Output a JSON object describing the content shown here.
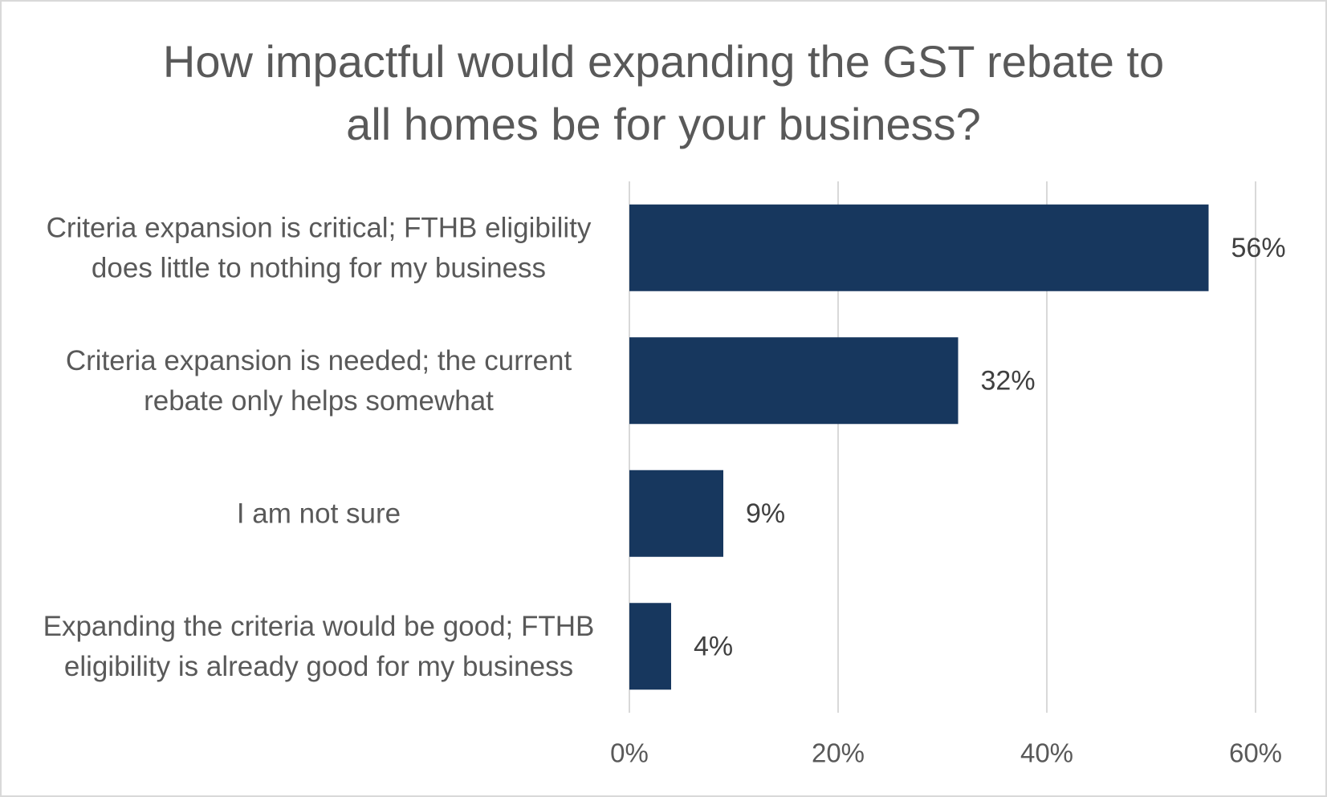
{
  "chart_data": {
    "type": "bar",
    "orientation": "horizontal",
    "title": "How impactful would expanding the GST rebate to\nall homes be for your business?",
    "categories": [
      [
        "Criteria expansion is critical; FTHB eligibility",
        "does little to nothing for my business"
      ],
      [
        "Criteria expansion is needed; the current",
        "rebate only helps somewhat"
      ],
      [
        "I am not sure"
      ],
      [
        "Expanding the criteria would be good; FTHB",
        "eligibility is already good for my business"
      ]
    ],
    "values": [
      55.5,
      31.5,
      9.0,
      4.0
    ],
    "data_labels": [
      "56%",
      "32%",
      "9%",
      "4%"
    ],
    "xlim": [
      0,
      60
    ],
    "x_ticks": [
      0,
      20,
      40,
      60
    ],
    "x_tick_labels": [
      "0%",
      "20%",
      "40%",
      "60%"
    ],
    "grid": true,
    "legend": "none",
    "bar_color": "#17375e",
    "gridline_color": "#d9d9d9"
  }
}
